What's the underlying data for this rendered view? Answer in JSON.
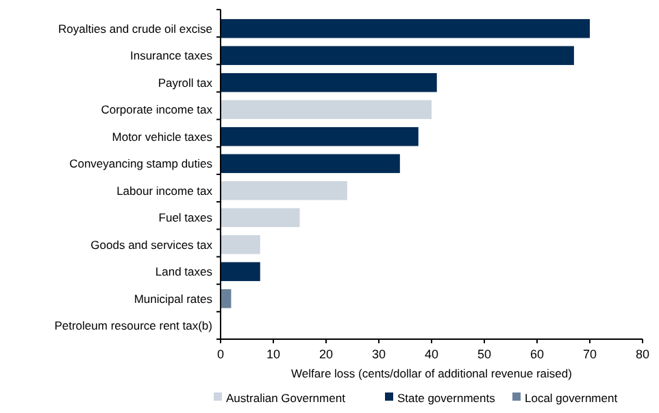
{
  "chart_data": {
    "type": "bar",
    "orientation": "horizontal",
    "stacked": true,
    "xlabel": "Welfare loss (cents/dollar of additional revenue raised)",
    "categories": [
      "Royalties and crude oil excise",
      "Insurance taxes",
      "Payroll tax",
      "Corporate income tax",
      "Motor vehicle taxes",
      "Conveyancing stamp duties",
      "Labour income tax",
      "Fuel taxes",
      "Goods and services tax",
      "Land taxes",
      "Municipal rates",
      "Petroleum resource rent tax(b)"
    ],
    "series": [
      {
        "name": "Australian Government",
        "color": "#cdd5df",
        "values": [
          null,
          null,
          null,
          40,
          null,
          null,
          24,
          15,
          7.5,
          null,
          null,
          0
        ]
      },
      {
        "name": "State governments",
        "color": "#002b54",
        "values": [
          70,
          67,
          41,
          null,
          37.5,
          34,
          null,
          null,
          null,
          7.5,
          null,
          null
        ]
      },
      {
        "name": "Local government",
        "color": "#6a819b",
        "values": [
          null,
          null,
          null,
          null,
          null,
          null,
          null,
          null,
          null,
          null,
          2,
          null
        ]
      }
    ],
    "xlim": [
      0,
      80
    ],
    "xticks": [
      0,
      10,
      20,
      30,
      40,
      50,
      60,
      70,
      80
    ],
    "grid": false,
    "legend": "bottom"
  }
}
